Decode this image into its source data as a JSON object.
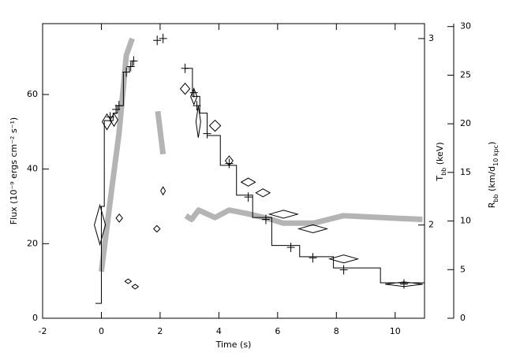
{
  "chart_data": {
    "type": "combo",
    "xlabel": "Time (s)",
    "ylabel": "Flux (10⁻⁹ ergs cm⁻² s⁻¹)",
    "y2label": [
      "T",
      "bb",
      " (keV)"
    ],
    "y3label": [
      "R",
      "bb",
      " (km/d",
      "10 kpc",
      ")"
    ],
    "xlim": [
      -2,
      11
    ],
    "xticks": [
      -2,
      0,
      2,
      4,
      6,
      8,
      10
    ],
    "ylim": [
      0,
      79
    ],
    "yticks": [
      0,
      20,
      40,
      60
    ],
    "y2lim": [
      1.5,
      3.08
    ],
    "y2ticks": [
      2,
      3
    ],
    "y3lim": [
      0,
      30.3
    ],
    "y3ticks": [
      0,
      5,
      10,
      15,
      20,
      25,
      30
    ],
    "series": [
      {
        "type": "band",
        "axis": "y2",
        "color": "#b4b4b4",
        "x": [
          0,
          0.35,
          0.6,
          0.85,
          1.05,
          1.5,
          1.92,
          2.1,
          2.5,
          2.88,
          3.07,
          3.31,
          3.87,
          4.35,
          5.0,
          5.79,
          6.19,
          7.23,
          8.24,
          9.52,
          10.93
        ],
        "values": [
          1.75,
          2.19,
          2.49,
          2.91,
          3.0,
          null,
          2.61,
          2.38,
          null,
          2.05,
          2.03,
          2.08,
          2.04,
          2.08,
          2.06,
          2.03,
          2.01,
          2.01,
          2.05,
          2.04,
          2.03
        ]
      },
      {
        "type": "step",
        "axis": "y",
        "color": "#000000",
        "x": [
          -0.2,
          0,
          0.1,
          0.4,
          0.55,
          0.75,
          0.95,
          1.05,
          1.15,
          2.85,
          3.1,
          3.35,
          3.6,
          4.05,
          4.6,
          5.15,
          5.8,
          6.75,
          7.9,
          9.5,
          11
        ],
        "values": [
          4,
          30,
          53,
          55,
          57,
          66,
          67.5,
          69,
          null,
          67,
          59.5,
          55,
          49,
          41,
          33,
          27,
          19.5,
          16.5,
          13.5,
          9.5,
          9.5
        ]
      },
      {
        "type": "cross",
        "axis": "y",
        "color": "#000000",
        "x": [
          0.3,
          0.5,
          0.6,
          0.85,
          1.0,
          1.1,
          1.9,
          2.1,
          2.85,
          3.15,
          3.25,
          3.6,
          4.35,
          5.0,
          5.6,
          6.45,
          7.2,
          8.25,
          10.3
        ],
        "values": [
          54,
          56,
          57,
          66,
          67.5,
          69,
          74.5,
          75,
          67,
          60.5,
          57,
          49.5,
          41.5,
          32.5,
          26.5,
          19,
          16.2,
          13,
          9.2
        ]
      },
      {
        "type": "diamond",
        "axis": "y3",
        "color": "#000000",
        "x": [
          -0.05,
          0.19,
          0.43,
          0.61,
          0.91,
          1.15,
          1.89,
          2.1,
          2.85,
          3.15,
          3.3,
          3.87,
          4.35,
          5.0,
          5.5,
          6.2,
          7.2,
          8.25,
          10.3
        ],
        "xerr": [
          0.19,
          0.16,
          0.13,
          0.11,
          0.11,
          0.11,
          0.11,
          0.08,
          0.16,
          0.11,
          0.08,
          0.19,
          0.13,
          0.24,
          0.24,
          0.48,
          0.48,
          0.48,
          0.64
        ],
        "values": [
          9.6,
          20.2,
          20.4,
          10.3,
          3.8,
          3.25,
          9.2,
          13.1,
          23.6,
          22.8,
          20.2,
          19.8,
          16.2,
          14,
          12.9,
          10.7,
          9.2,
          6.1,
          3.5
        ],
        "yerr": [
          2.03,
          0.81,
          0.65,
          0.41,
          0.24,
          0.24,
          0.33,
          0.41,
          0.57,
          0.81,
          1.63,
          0.57,
          0.49,
          0.41,
          0.41,
          0.41,
          0.41,
          0.41,
          0.24
        ]
      }
    ]
  }
}
